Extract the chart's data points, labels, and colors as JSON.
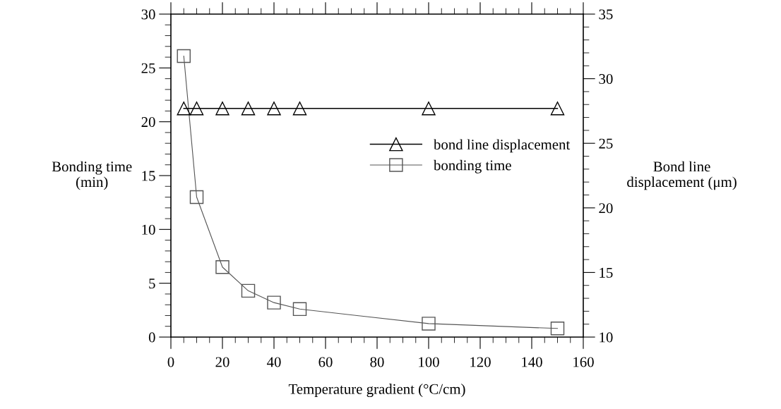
{
  "chart_data": {
    "type": "line",
    "xlabel": "Temperature gradient (°C/cm)",
    "ylabel": "Bonding time\n(min)",
    "y2label": "Bond line\ndisplacement (μm)",
    "x": [
      5,
      10,
      20,
      30,
      40,
      50,
      100,
      150
    ],
    "series": [
      {
        "name": "bond line displacement",
        "color": "#000000",
        "axis": "y2",
        "marker": "triangle",
        "values": [
          27.7,
          27.7,
          27.7,
          27.7,
          27.7,
          27.7,
          27.7,
          27.7
        ]
      },
      {
        "name": "bonding time",
        "color": "#555555",
        "marker": "square",
        "values": [
          26.1,
          13.0,
          6.5,
          4.3,
          3.2,
          2.6,
          1.25,
          0.8
        ]
      }
    ],
    "xlim": [
      0,
      160
    ],
    "xticks": [
      0,
      20,
      40,
      60,
      80,
      100,
      120,
      140,
      160
    ],
    "ylim": [
      0,
      30
    ],
    "yticks": [
      0,
      5,
      10,
      15,
      20,
      25,
      30
    ],
    "y2lim": [
      10,
      35
    ],
    "y2ticks": [
      10,
      15,
      20,
      25,
      30,
      35
    ],
    "legend": "center right",
    "grid": false,
    "line_style": "solid"
  }
}
